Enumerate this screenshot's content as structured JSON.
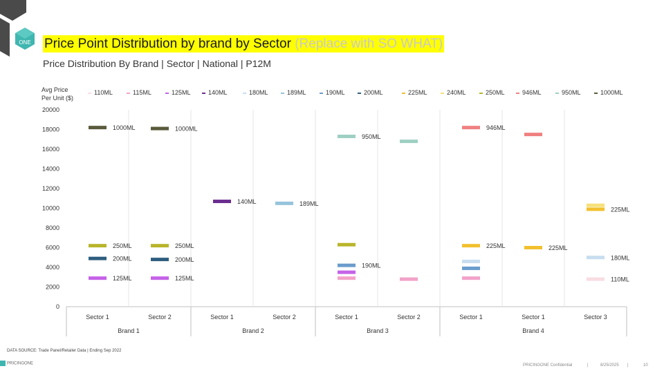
{
  "header": {
    "title_main": "Price Point Distribution by brand by Sector",
    "title_note": "(Replace with SO WHAT)",
    "subtitle": "Price Distribution By Brand | Sector | National | P12M",
    "logo_text": "ONE"
  },
  "colors": {
    "title_highlight": "#ffff00",
    "110ML": "#f9dde3",
    "115ML": "#f2a2c8",
    "125ML": "#c562e8",
    "140ML": "#6b2d8f",
    "180ML": "#c7ddef",
    "189ML": "#96c3dc",
    "190ML": "#6a9ccc",
    "200ML": "#2e5e7f",
    "225ML": "#f2c02e",
    "240ML": "#f6e07a",
    "250ML": "#b8b52a",
    "946ML": "#f08080",
    "950ML": "#9ecfc3",
    "1000ML": "#5a5a3c"
  },
  "chart_data": {
    "type": "scatter",
    "ylabel": "Avg Price Per Unit ($)",
    "ylim": [
      0,
      20000
    ],
    "yticks": [
      0,
      2000,
      4000,
      6000,
      8000,
      10000,
      12000,
      14000,
      16000,
      18000,
      20000
    ],
    "legend": [
      "110ML",
      "115ML",
      "125ML",
      "140ML",
      "180ML",
      "189ML",
      "190ML",
      "200ML",
      "225ML",
      "240ML",
      "250ML",
      "946ML",
      "950ML",
      "1000ML"
    ],
    "categories": [
      {
        "brand": "Brand 1",
        "sector": "Sector 1"
      },
      {
        "brand": "Brand 1",
        "sector": "Sector 2"
      },
      {
        "brand": "Brand 2",
        "sector": "Sector 1"
      },
      {
        "brand": "Brand 2",
        "sector": "Sector 2"
      },
      {
        "brand": "Brand 3",
        "sector": "Sector 1"
      },
      {
        "brand": "Brand 3",
        "sector": "Sector 2"
      },
      {
        "brand": "Brand 4",
        "sector": "Sector 1"
      },
      {
        "brand": "Brand 4",
        "sector": "Sector 1"
      },
      {
        "brand": "Brand 4",
        "sector": "Sector 3"
      }
    ],
    "brands": [
      "Brand 1",
      "Brand 2",
      "Brand 3",
      "Brand 4"
    ],
    "points": [
      {
        "cat": 0,
        "size": "1000ML",
        "value": 18200,
        "label": "1000ML"
      },
      {
        "cat": 0,
        "size": "250ML",
        "value": 6200,
        "label": "250ML"
      },
      {
        "cat": 0,
        "size": "200ML",
        "value": 4900,
        "label": "200ML"
      },
      {
        "cat": 0,
        "size": "125ML",
        "value": 2900,
        "label": "125ML"
      },
      {
        "cat": 1,
        "size": "1000ML",
        "value": 18100,
        "label": "1000ML"
      },
      {
        "cat": 1,
        "size": "250ML",
        "value": 6200,
        "label": "250ML"
      },
      {
        "cat": 1,
        "size": "200ML",
        "value": 4800,
        "label": "200ML"
      },
      {
        "cat": 1,
        "size": "125ML",
        "value": 2900,
        "label": "125ML"
      },
      {
        "cat": 2,
        "size": "140ML",
        "value": 10700,
        "label": "140ML"
      },
      {
        "cat": 3,
        "size": "189ML",
        "value": 10500,
        "label": "189ML"
      },
      {
        "cat": 4,
        "size": "950ML",
        "value": 17300,
        "label": "950ML"
      },
      {
        "cat": 4,
        "size": "250ML",
        "value": 6300,
        "label": ""
      },
      {
        "cat": 4,
        "size": "190ML",
        "value": 4200,
        "label": "190ML"
      },
      {
        "cat": 4,
        "size": "125ML",
        "value": 3500,
        "label": ""
      },
      {
        "cat": 4,
        "size": "115ML",
        "value": 2900,
        "label": ""
      },
      {
        "cat": 5,
        "size": "950ML",
        "value": 16800,
        "label": ""
      },
      {
        "cat": 5,
        "size": "115ML",
        "value": 2800,
        "label": ""
      },
      {
        "cat": 6,
        "size": "946ML",
        "value": 18200,
        "label": "946ML"
      },
      {
        "cat": 6,
        "size": "225ML",
        "value": 6200,
        "label": "225ML"
      },
      {
        "cat": 6,
        "size": "180ML",
        "value": 4600,
        "label": ""
      },
      {
        "cat": 6,
        "size": "190ML",
        "value": 3900,
        "label": ""
      },
      {
        "cat": 6,
        "size": "115ML",
        "value": 2900,
        "label": ""
      },
      {
        "cat": 7,
        "size": "946ML",
        "value": 17500,
        "label": ""
      },
      {
        "cat": 7,
        "size": "225ML",
        "value": 6000,
        "label": "225ML"
      },
      {
        "cat": 8,
        "size": "240ML",
        "value": 10300,
        "label": ""
      },
      {
        "cat": 8,
        "size": "225ML",
        "value": 9900,
        "label": "225ML"
      },
      {
        "cat": 8,
        "size": "180ML",
        "value": 5000,
        "label": "180ML"
      },
      {
        "cat": 8,
        "size": "110ML",
        "value": 2800,
        "label": "110ML"
      }
    ]
  },
  "footer": {
    "source": "DATA SOURCE: Trade Panel/Retailer Data | Ending Sep 2022",
    "brand_logo": "PRICINGONE",
    "confidential": "PRICINGONE Confidential",
    "date": "8/25/2025",
    "page": "10"
  }
}
